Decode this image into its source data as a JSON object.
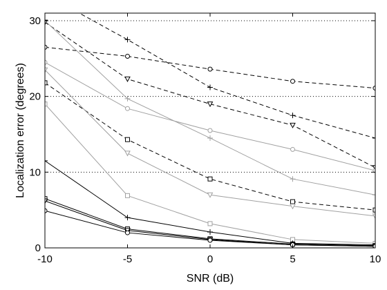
{
  "chart_data": {
    "type": "line",
    "xlabel": "SNR (dB)",
    "ylabel": "Localization error (degrees)",
    "xlim": [
      -10,
      10
    ],
    "ylim": [
      0,
      31
    ],
    "x": [
      -10,
      -5,
      0,
      5,
      10
    ],
    "xticks": [
      -10,
      -5,
      0,
      5,
      10
    ],
    "yticks": [
      0,
      10,
      20,
      30
    ],
    "grid": "horizontal dotted at 10, 20, 30",
    "legend": "none",
    "series": [
      {
        "values": [
          33.5,
          27.5,
          21.2,
          17.5,
          14.5
        ],
        "style": "dashed",
        "color": "#000000",
        "marker": "plus"
      },
      {
        "values": [
          26.5,
          25.3,
          23.6,
          22.0,
          21.1
        ],
        "style": "dashed",
        "color": "#000000",
        "marker": "circle"
      },
      {
        "values": [
          29.8,
          22.3,
          19.0,
          16.2,
          10.6
        ],
        "style": "dashed",
        "color": "#000000",
        "marker": "triangle-down"
      },
      {
        "values": [
          21.8,
          14.3,
          9.1,
          6.1,
          5.0
        ],
        "style": "dashed",
        "color": "#000000",
        "marker": "square"
      },
      {
        "values": [
          30.0,
          19.7,
          14.5,
          9.1,
          7.0
        ],
        "style": "solid",
        "color": "#a0a0a0",
        "marker": "plus"
      },
      {
        "values": [
          24.5,
          18.4,
          15.5,
          13.0,
          10.2
        ],
        "style": "solid",
        "color": "#a0a0a0",
        "marker": "circle"
      },
      {
        "values": [
          23.5,
          12.5,
          7.0,
          5.5,
          4.2
        ],
        "style": "solid",
        "color": "#a0a0a0",
        "marker": "triangle-down"
      },
      {
        "values": [
          19.0,
          6.9,
          3.2,
          1.1,
          0.6
        ],
        "style": "solid",
        "color": "#a0a0a0",
        "marker": "square"
      },
      {
        "values": [
          11.5,
          4.0,
          2.1,
          0.6,
          0.4
        ],
        "style": "solid",
        "color": "#000000",
        "marker": "plus"
      },
      {
        "values": [
          6.5,
          2.5,
          1.2,
          0.5,
          0.3
        ],
        "style": "solid",
        "color": "#000000",
        "marker": "square"
      },
      {
        "values": [
          6.2,
          2.3,
          1.1,
          0.4,
          0.2
        ],
        "style": "solid",
        "color": "#000000",
        "marker": "triangle-down"
      },
      {
        "values": [
          4.9,
          2.0,
          1.0,
          0.4,
          0.2
        ],
        "style": "solid",
        "color": "#000000",
        "marker": "circle"
      }
    ]
  }
}
